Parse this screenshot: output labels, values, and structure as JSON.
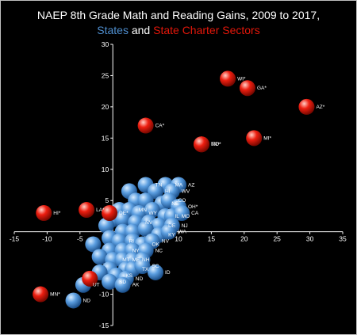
{
  "chart_data": {
    "type": "scatter",
    "title": "NAEP 8th Grade Math and Reading Gains, 2009 to 2017,",
    "subtitle": {
      "part1": "States",
      "part2": " and ",
      "part3": "State Charter Sectors"
    },
    "xlabel": "",
    "ylabel": "",
    "xlim": [
      -15,
      35
    ],
    "ylim": [
      -15,
      30
    ],
    "xticks": [
      -15,
      -10,
      -5,
      0,
      5,
      10,
      15,
      20,
      25,
      30,
      35
    ],
    "yticks": [
      -15,
      -10,
      -5,
      5,
      10,
      15,
      20,
      25,
      30
    ],
    "grid": false,
    "series": [
      {
        "name": "States",
        "color": "#4f8fd0",
        "points": [
          {
            "x": 8,
            "y": 7.5,
            "label": "MA"
          },
          {
            "x": 10,
            "y": 7.5,
            "label": "AZ"
          },
          {
            "x": 5,
            "y": 7.5,
            "label": "TN"
          },
          {
            "x": 6.5,
            "y": 6.5,
            "label": "HI"
          },
          {
            "x": 9,
            "y": 6.5,
            "label": "WV"
          },
          {
            "x": 2.5,
            "y": 6.5,
            "label": ""
          },
          {
            "x": 3.5,
            "y": 5,
            "label": ""
          },
          {
            "x": 5,
            "y": 5,
            "label": ""
          },
          {
            "x": 7.5,
            "y": 4.5,
            "label": "NE"
          },
          {
            "x": 8.5,
            "y": 5,
            "label": "CO"
          },
          {
            "x": 10,
            "y": 4,
            "label": "OH*"
          },
          {
            "x": 1,
            "y": 3.5,
            "label": ""
          },
          {
            "x": 2.5,
            "y": 3.5,
            "label": "MN"
          },
          {
            "x": 4,
            "y": 3,
            "label": "WY"
          },
          {
            "x": 6,
            "y": 3.5,
            "label": ""
          },
          {
            "x": 8,
            "y": 2.5,
            "label": "IL"
          },
          {
            "x": 9,
            "y": 2.5,
            "label": "MO"
          },
          {
            "x": 10.5,
            "y": 3,
            "label": "CA"
          },
          {
            "x": 0,
            "y": 2,
            "label": ""
          },
          {
            "x": 1.5,
            "y": 2,
            "label": ""
          },
          {
            "x": 3.5,
            "y": 1.5,
            "label": "NV"
          },
          {
            "x": 5.5,
            "y": 1.5,
            "label": ""
          },
          {
            "x": 7,
            "y": 1,
            "label": "DE"
          },
          {
            "x": 9,
            "y": 1,
            "label": "NJ"
          },
          {
            "x": -1,
            "y": 1,
            "label": ""
          },
          {
            "x": 1.5,
            "y": 0,
            "label": ""
          },
          {
            "x": 3,
            "y": 0,
            "label": ""
          },
          {
            "x": 5,
            "y": 0.5,
            "label": ""
          },
          {
            "x": 7,
            "y": -0.5,
            "label": "KY"
          },
          {
            "x": 8.5,
            "y": 0,
            "label": "WA"
          },
          {
            "x": -0.5,
            "y": -1,
            "label": ""
          },
          {
            "x": 1,
            "y": -1.5,
            "label": "RI"
          },
          {
            "x": 3,
            "y": -1.5,
            "label": ""
          },
          {
            "x": 4.5,
            "y": -2,
            "label": "OK"
          },
          {
            "x": 6,
            "y": -1.5,
            "label": "NV"
          },
          {
            "x": -3,
            "y": -2,
            "label": ""
          },
          {
            "x": -0.5,
            "y": -3,
            "label": ""
          },
          {
            "x": 1.5,
            "y": -3,
            "label": "NY"
          },
          {
            "x": 3,
            "y": -3,
            "label": ""
          },
          {
            "x": 5,
            "y": -3,
            "label": "NC"
          },
          {
            "x": -2,
            "y": -4,
            "label": ""
          },
          {
            "x": 0,
            "y": -4.5,
            "label": "MT"
          },
          {
            "x": 1.5,
            "y": -4.5,
            "label": "ME"
          },
          {
            "x": 3,
            "y": -4.5,
            "label": "NH"
          },
          {
            "x": 4.5,
            "y": -4.5,
            "label": ""
          },
          {
            "x": -0.5,
            "y": -6,
            "label": ""
          },
          {
            "x": 2,
            "y": -6,
            "label": ""
          },
          {
            "x": 3,
            "y": -6,
            "label": "TX"
          },
          {
            "x": 4.5,
            "y": -5.5,
            "label": "SC"
          },
          {
            "x": -2,
            "y": -6.5,
            "label": ""
          },
          {
            "x": 0.5,
            "y": -7,
            "label": "KS"
          },
          {
            "x": 2,
            "y": -7.5,
            "label": "ND"
          },
          {
            "x": 6.5,
            "y": -6.5,
            "label": "ID"
          },
          {
            "x": -0.5,
            "y": -8,
            "label": "SD"
          },
          {
            "x": 1.5,
            "y": -8.5,
            "label": "AK"
          },
          {
            "x": -4.5,
            "y": -8.5,
            "label": "UT"
          },
          {
            "x": -6,
            "y": -11,
            "label": "ND"
          }
        ]
      },
      {
        "name": "State Charter Sectors",
        "color": "#e3170a",
        "points": [
          {
            "x": 17.5,
            "y": 24.5,
            "label": "WI*"
          },
          {
            "x": 20.5,
            "y": 23,
            "label": "GA*"
          },
          {
            "x": 29.5,
            "y": 20,
            "label": "AZ*"
          },
          {
            "x": 5,
            "y": 17,
            "label": "CA*"
          },
          {
            "x": 13.5,
            "y": 14,
            "label": "MD*"
          },
          {
            "x": 13.5,
            "y": 14,
            "label": "TX*"
          },
          {
            "x": 21.5,
            "y": 15,
            "label": "MI*"
          },
          {
            "x": -4,
            "y": 3.5,
            "label": "LA*"
          },
          {
            "x": -10.5,
            "y": 3,
            "label": "HI*"
          },
          {
            "x": -0.5,
            "y": 3,
            "label": "DE*"
          },
          {
            "x": -3.5,
            "y": -7.5,
            "label": ""
          },
          {
            "x": -11,
            "y": -10,
            "label": "MN*"
          }
        ]
      }
    ]
  }
}
